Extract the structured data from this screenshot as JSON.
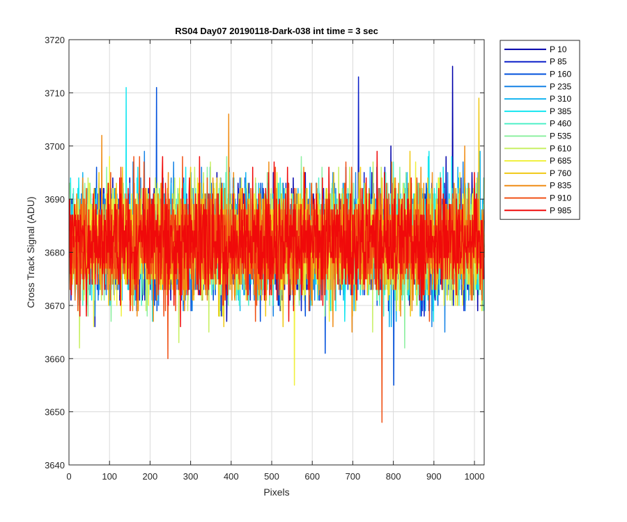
{
  "chart_data": {
    "type": "line",
    "title": "RS04 Day07 20190118-Dark-038 int time = 3 sec",
    "xlabel": "Pixels",
    "ylabel": "Cross Track Signal (ADU)",
    "xlim": [
      0,
      1024
    ],
    "ylim": [
      3640,
      3720
    ],
    "xticks": [
      "0",
      "100",
      "200",
      "300",
      "400",
      "500",
      "600",
      "700",
      "800",
      "900",
      "1000"
    ],
    "yticks": [
      "3640",
      "3650",
      "3660",
      "3670",
      "3680",
      "3690",
      "3700",
      "3710",
      "3720"
    ],
    "grid": true,
    "legend_position": "outside-top-right",
    "signal_mean": 3682,
    "signal_spread": 5,
    "series": [
      {
        "name": "P 10",
        "color": "#0000aa"
      },
      {
        "name": "P 85",
        "color": "#0a1ec8"
      },
      {
        "name": "P 160",
        "color": "#0050dc"
      },
      {
        "name": "P 235",
        "color": "#1482e6"
      },
      {
        "name": "P 310",
        "color": "#14b4f0"
      },
      {
        "name": "P 385",
        "color": "#14e6f0"
      },
      {
        "name": "P 460",
        "color": "#50f0c8"
      },
      {
        "name": "P 535",
        "color": "#8cf0a0"
      },
      {
        "name": "P 610",
        "color": "#c8f064"
      },
      {
        "name": "P 685",
        "color": "#f0f03c"
      },
      {
        "name": "P 760",
        "color": "#f0c814"
      },
      {
        "name": "P 835",
        "color": "#f08c14"
      },
      {
        "name": "P 910",
        "color": "#f05014"
      },
      {
        "name": "P 985",
        "color": "#f00a0a"
      }
    ],
    "notable_extremes": [
      {
        "series": "P 10",
        "x": 945,
        "y": 3715
      },
      {
        "series": "P 85",
        "x": 713,
        "y": 3713
      },
      {
        "series": "P 910",
        "x": 771,
        "y": 3648
      },
      {
        "series": "P 160",
        "x": 215,
        "y": 3711
      },
      {
        "series": "P 385",
        "x": 140,
        "y": 3711
      },
      {
        "series": "P 160",
        "x": 800,
        "y": 3655
      },
      {
        "series": "P 685",
        "x": 555,
        "y": 3655
      },
      {
        "series": "P 835",
        "x": 393,
        "y": 3706
      },
      {
        "series": "P 760",
        "x": 1010,
        "y": 3709
      }
    ]
  }
}
